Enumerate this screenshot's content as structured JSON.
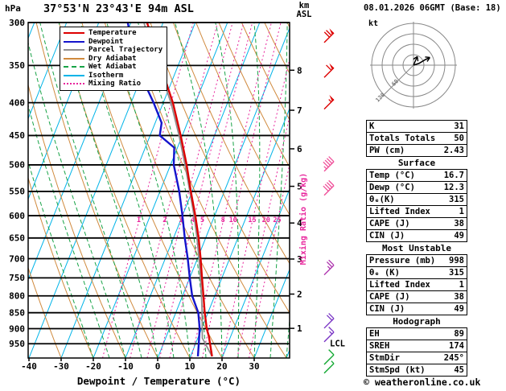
{
  "header": {
    "pressure_unit": "hPa",
    "station": "37°53'N 23°43'E 94m ASL",
    "altitude_unit_top": "km",
    "altitude_unit_bottom": "ASL",
    "datetime": "08.01.2026 06GMT (Base: 18)"
  },
  "legend": {
    "items": [
      {
        "label": "Temperature",
        "color": "#dd0000",
        "line_style": "solid"
      },
      {
        "label": "Dewpoint",
        "color": "#1414cc",
        "line_style": "solid"
      },
      {
        "label": "Parcel Trajectory",
        "color": "#8f8f8f",
        "line_style": "solid"
      },
      {
        "label": "Dry Adiabat",
        "color": "#d08a3e",
        "line_style": "solid"
      },
      {
        "label": "Wet Adiabat",
        "color": "#18a347",
        "line_style": "dashed"
      },
      {
        "label": "Isotherm",
        "color": "#00b4e8",
        "line_style": "solid"
      },
      {
        "label": "Mixing Ratio",
        "color": "#e8259c",
        "line_style": "dotted"
      }
    ]
  },
  "axes": {
    "pressure_ticks": [
      300,
      350,
      400,
      450,
      500,
      550,
      600,
      650,
      700,
      750,
      800,
      850,
      900,
      950
    ],
    "temp_ticks": [
      -40,
      -30,
      -20,
      -10,
      0,
      10,
      20,
      30
    ],
    "km_ticks": [
      1,
      2,
      3,
      4,
      5,
      6,
      7,
      8
    ],
    "xlabel": "Dewpoint / Temperature (°C)",
    "mixing_ratio_label": "Mixing Ratio (g/kg)",
    "mixing_ratio_values": [
      1,
      2,
      3,
      4,
      5,
      8,
      10,
      15,
      20,
      25
    ],
    "lcl_label": "LCL"
  },
  "chart_data": {
    "type": "line",
    "variant": "skew-t log-p sounding",
    "title": "37°53'N 23°43'E 94m ASL",
    "x_axis": {
      "label": "Dewpoint / Temperature (°C)",
      "range": [
        -40,
        40
      ]
    },
    "y_axis": {
      "label": "hPa",
      "range": [
        1000,
        300
      ],
      "scale": "log"
    },
    "colors": {
      "temperature": "#dd0000",
      "dewpoint": "#1414cc",
      "parcel": "#8f8f8f",
      "dry_adiabat": "#d08a3e",
      "wet_adiabat": "#18a347",
      "isotherm": "#00b4e8",
      "mixing_ratio": "#e8259c",
      "isobar": "#000000"
    },
    "series": [
      {
        "name": "Temperature",
        "color": "#dd0000",
        "points": [
          [
            994,
            16.7
          ],
          [
            950,
            14.5
          ],
          [
            925,
            13.2
          ],
          [
            900,
            11.6
          ],
          [
            850,
            9.0
          ],
          [
            800,
            6.5
          ],
          [
            750,
            3.8
          ],
          [
            700,
            1.0
          ],
          [
            650,
            -2.2
          ],
          [
            600,
            -6.0
          ],
          [
            550,
            -10.4
          ],
          [
            500,
            -15.0
          ],
          [
            450,
            -20.5
          ],
          [
            400,
            -27.0
          ],
          [
            350,
            -35.5
          ],
          [
            300,
            -45.0
          ]
        ]
      },
      {
        "name": "Dewpoint",
        "color": "#1414cc",
        "points": [
          [
            994,
            12.3
          ],
          [
            950,
            11.0
          ],
          [
            925,
            10.2
          ],
          [
            900,
            9.4
          ],
          [
            850,
            7.0
          ],
          [
            800,
            3.0
          ],
          [
            750,
            0.0
          ],
          [
            700,
            -3.0
          ],
          [
            650,
            -6.5
          ],
          [
            600,
            -10.0
          ],
          [
            550,
            -14.0
          ],
          [
            500,
            -19.0
          ],
          [
            470,
            -21.0
          ],
          [
            450,
            -27.0
          ],
          [
            430,
            -28.0
          ],
          [
            400,
            -33.0
          ],
          [
            350,
            -43.0
          ],
          [
            300,
            -51.0
          ]
        ]
      },
      {
        "name": "Parcel Trajectory",
        "color": "#8f8f8f",
        "points": [
          [
            994,
            16.7
          ],
          [
            931,
            11.4
          ],
          [
            900,
            10.2
          ],
          [
            850,
            8.2
          ],
          [
            800,
            5.9
          ],
          [
            750,
            3.3
          ],
          [
            700,
            0.5
          ],
          [
            650,
            -2.7
          ],
          [
            600,
            -6.4
          ],
          [
            550,
            -10.7
          ],
          [
            500,
            -15.5
          ],
          [
            450,
            -21.0
          ],
          [
            400,
            -27.6
          ],
          [
            350,
            -36.2
          ],
          [
            300,
            -46.0
          ]
        ]
      }
    ],
    "km_levels": [
      {
        "km": 1,
        "p": 899
      },
      {
        "km": 2,
        "p": 795
      },
      {
        "km": 3,
        "p": 701
      },
      {
        "km": 4,
        "p": 616
      },
      {
        "km": 5,
        "p": 540
      },
      {
        "km": 6,
        "p": 472
      },
      {
        "km": 7,
        "p": 411
      },
      {
        "km": 8,
        "p": 356
      }
    ],
    "lcl_pressure": 948,
    "wind_barbs": [
      {
        "p": 315,
        "spd": 70,
        "color": "#dd0000"
      },
      {
        "p": 357,
        "spd": 60,
        "color": "#dd0000"
      },
      {
        "p": 400,
        "spd": 55,
        "color": "#dd0000"
      },
      {
        "p": 500,
        "spd": 45,
        "color": "#f0509a"
      },
      {
        "p": 545,
        "spd": 40,
        "color": "#f0509a"
      },
      {
        "p": 725,
        "spd": 25,
        "color": "#b03ab0"
      },
      {
        "p": 878,
        "spd": 20,
        "color": "#7a35c5"
      },
      {
        "p": 922,
        "spd": 15,
        "color": "#7a35c5"
      },
      {
        "p": 1000,
        "spd": 10,
        "color": "#10a830"
      },
      {
        "p": 1032,
        "spd": 7,
        "color": "#10a830"
      }
    ]
  },
  "hodograph": {
    "unit_label": "kt",
    "rings_kt": [
      30,
      60,
      90,
      120
    ],
    "ring_labels": [
      "60",
      "120"
    ],
    "trace_kt": [
      [
        0,
        0
      ],
      [
        16,
        5
      ],
      [
        34,
        16
      ],
      [
        47,
        22
      ]
    ],
    "trace2_kt": [
      [
        0,
        0
      ],
      [
        11,
        25
      ]
    ]
  },
  "panel": {
    "groups": [
      {
        "title": "",
        "rows": [
          [
            "K",
            "31"
          ],
          [
            "Totals Totals",
            "50"
          ],
          [
            "PW (cm)",
            "2.43"
          ]
        ]
      },
      {
        "title": "Surface",
        "rows": [
          [
            "Temp (°C)",
            "16.7"
          ],
          [
            "Dewp (°C)",
            "12.3"
          ],
          [
            "θₑ(K)",
            "315"
          ],
          [
            "Lifted Index",
            "1"
          ],
          [
            "CAPE (J)",
            "38"
          ],
          [
            "CIN (J)",
            "49"
          ]
        ]
      },
      {
        "title": "Most Unstable",
        "rows": [
          [
            "Pressure (mb)",
            "998"
          ],
          [
            "θₑ (K)",
            "315"
          ],
          [
            "Lifted Index",
            "1"
          ],
          [
            "CAPE (J)",
            "38"
          ],
          [
            "CIN (J)",
            "49"
          ]
        ]
      },
      {
        "title": "Hodograph",
        "rows": [
          [
            "EH",
            "89"
          ],
          [
            "SREH",
            "174"
          ],
          [
            "StmDir",
            "245°"
          ],
          [
            "StmSpd (kt)",
            "45"
          ]
        ]
      }
    ]
  },
  "footer": {
    "credit": "© weatheronline.co.uk"
  }
}
